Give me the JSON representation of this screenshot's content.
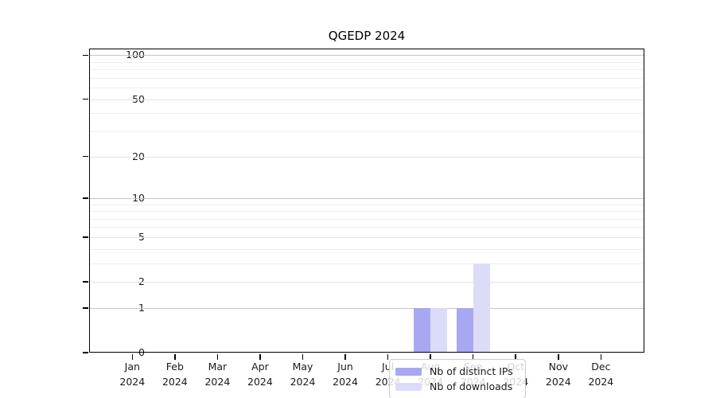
{
  "chart_data": {
    "type": "bar",
    "title": "QGEDP 2024",
    "categories": [
      "Jan",
      "Feb",
      "Mar",
      "Apr",
      "May",
      "Jun",
      "Jul",
      "Aug",
      "Sep",
      "Oct",
      "Nov",
      "Dec"
    ],
    "category_year": "2024",
    "series": [
      {
        "name": "Nb of distinct IPs",
        "color": "#a8a8f2",
        "values": [
          0,
          0,
          0,
          0,
          0,
          0,
          0,
          1,
          1,
          0,
          0,
          0
        ]
      },
      {
        "name": "Nb of downloads",
        "color": "#dcdcf9",
        "values": [
          0,
          0,
          0,
          0,
          0,
          0,
          0,
          1,
          3,
          0,
          0,
          0
        ]
      }
    ],
    "xlabel": "",
    "ylabel": "",
    "yscale": "log1p",
    "ylim": [
      0,
      111
    ],
    "yticks": [
      {
        "value": 0,
        "label": "0"
      },
      {
        "value": 1,
        "label": "1"
      },
      {
        "value": 2,
        "label": "2"
      },
      {
        "value": 5,
        "label": "5"
      },
      {
        "value": 10,
        "label": "10"
      },
      {
        "value": 20,
        "label": "20"
      },
      {
        "value": 50,
        "label": "50"
      },
      {
        "value": 100,
        "label": "100"
      }
    ],
    "grid": "horizontal major+minor",
    "legend_position": "lower center"
  }
}
